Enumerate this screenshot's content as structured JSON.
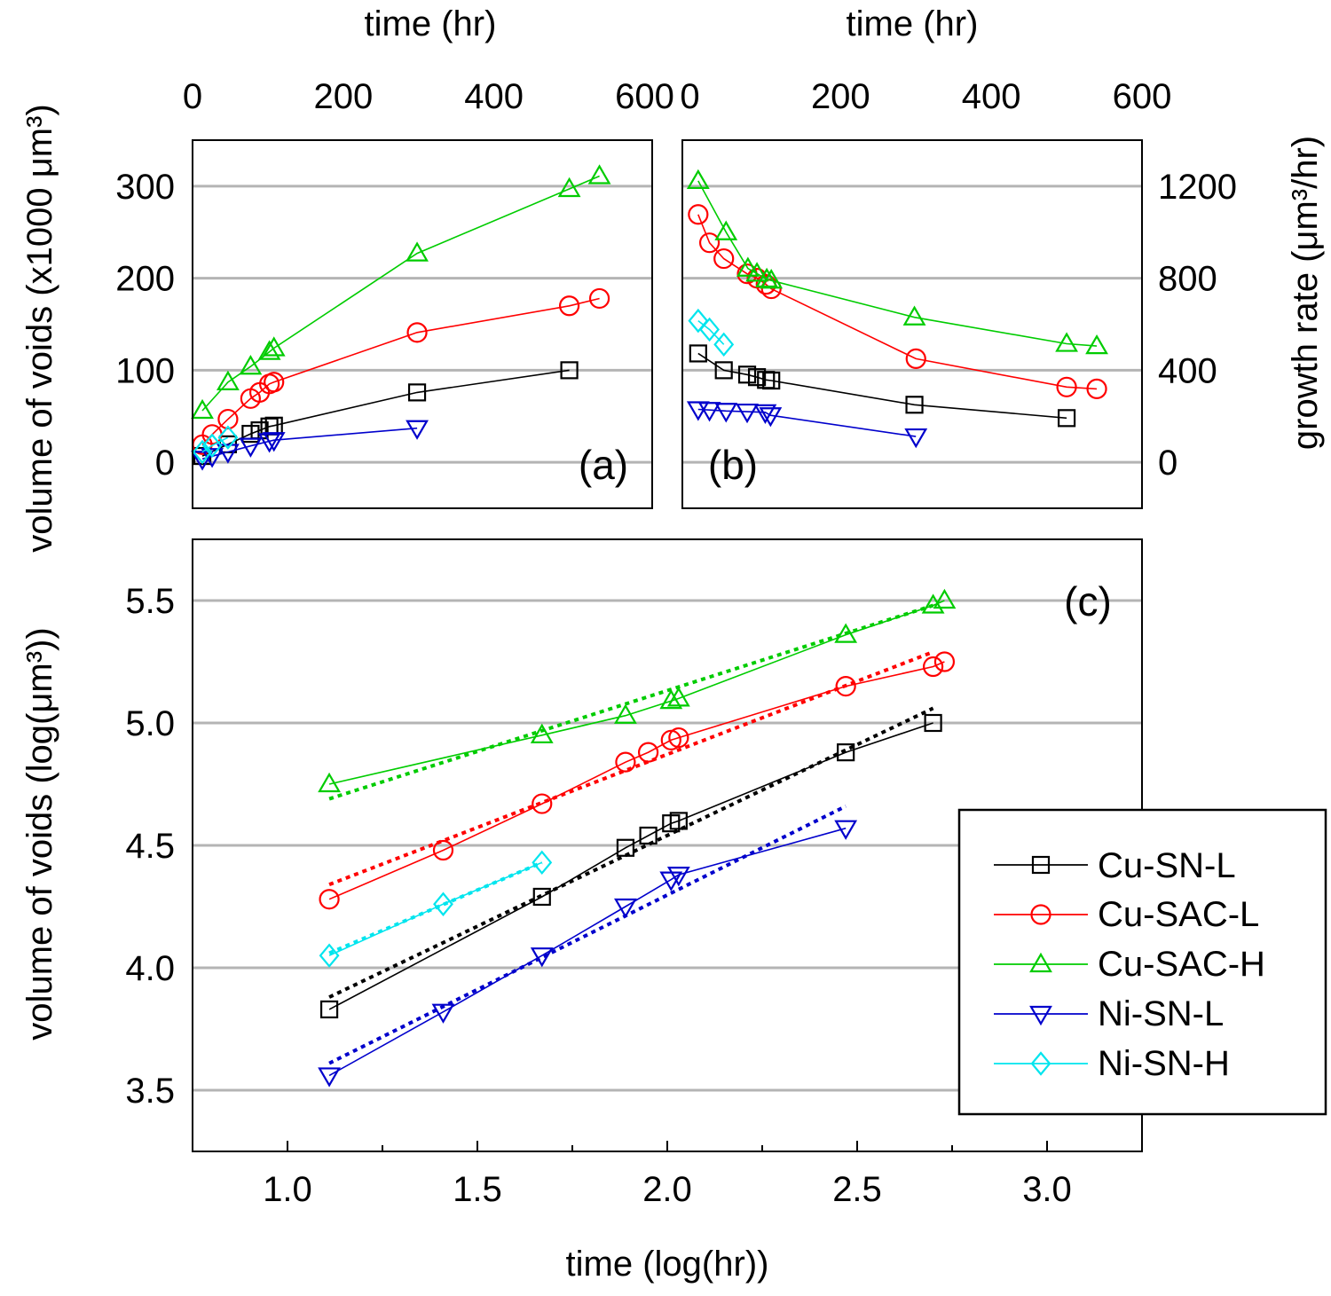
{
  "chart_data": [
    {
      "panel": "a",
      "type": "line",
      "panel_label": "(a)",
      "xlabel": "time (hr)",
      "xaxis_position": "top",
      "ylabel": "volume of voids (x1000 μm³)",
      "xlim": [
        0,
        610
      ],
      "ylim": [
        -50,
        350
      ],
      "xticks": [
        0,
        200,
        400,
        600
      ],
      "yticks": [
        0,
        100,
        200,
        300
      ],
      "grid": true,
      "series": [
        {
          "name": "Cu-SN-L",
          "x": [
            13,
            47,
            77,
            89,
            102,
            108,
            298,
            500
          ],
          "y": [
            6.8,
            19.5,
            30.9,
            34.7,
            38.9,
            39.8,
            75.9,
            100
          ]
        },
        {
          "name": "Cu-SAC-L",
          "x": [
            13,
            26,
            47,
            77,
            89,
            102,
            108,
            298,
            500,
            540
          ],
          "y": [
            19.1,
            30.2,
            46.8,
            69.2,
            75.9,
            85.1,
            87.1,
            141,
            170,
            178
          ]
        },
        {
          "name": "Cu-SAC-H",
          "x": [
            13,
            47,
            77,
            102,
            108,
            298,
            500,
            540
          ],
          "y": [
            56,
            87,
            104,
            120,
            124,
            227,
            297,
            311
          ]
        },
        {
          "name": "Ni-SN-L",
          "x": [
            13,
            26,
            47,
            77,
            102,
            108,
            298
          ],
          "y": [
            3.6,
            6.6,
            11.2,
            17.8,
            22.9,
            24,
            37
          ]
        },
        {
          "name": "Ni-SN-H",
          "x": [
            13,
            26,
            47
          ],
          "y": [
            11.2,
            18.2,
            26.9
          ]
        }
      ]
    },
    {
      "panel": "b",
      "type": "line",
      "panel_label": "(b)",
      "xlabel": "time (hr)",
      "xaxis_position": "top",
      "ylabel": "growth rate (μm³/hr)",
      "yaxis_position": "right",
      "xlim": [
        -10,
        600
      ],
      "ylim": [
        -200,
        1400
      ],
      "xticks": [
        0,
        200,
        400,
        600
      ],
      "yticks": [
        0,
        400,
        800,
        1200
      ],
      "grid": true,
      "series": [
        {
          "name": "Cu-SN-L",
          "x": [
            11,
            45,
            76,
            89,
            101,
            108,
            298,
            500
          ],
          "y": [
            473,
            400,
            381,
            370,
            358,
            355,
            250,
            192
          ]
        },
        {
          "name": "Cu-SAC-L",
          "x": [
            11,
            26,
            45,
            76,
            89,
            101,
            108,
            300,
            500,
            540
          ],
          "y": [
            1077,
            954,
            885,
            819,
            800,
            773,
            754,
            450,
            327,
            319
          ]
        },
        {
          "name": "Cu-SAC-H",
          "x": [
            11,
            48,
            77,
            89,
            102,
            108,
            298,
            500,
            540
          ],
          "y": [
            1223,
            1000,
            842,
            820,
            795,
            790,
            630,
            515,
            505
          ]
        },
        {
          "name": "Ni-SN-L",
          "x": [
            11,
            26,
            48,
            76,
            100,
            107,
            300
          ],
          "y": [
            230,
            227,
            223,
            220,
            217,
            204,
            112
          ]
        },
        {
          "name": "Ni-SN-H",
          "x": [
            11,
            26,
            45
          ],
          "y": [
            615,
            577,
            512
          ]
        }
      ]
    },
    {
      "panel": "c",
      "type": "line",
      "panel_label": "(c)",
      "xlabel": "time (log(hr))",
      "ylabel": "volume of voids (log(μm³))",
      "xlim": [
        0.75,
        3.25
      ],
      "ylim": [
        3.25,
        5.75
      ],
      "xticks": [
        "1.0",
        "1.5",
        "2.0",
        "2.5",
        "3.0"
      ],
      "yticks": [
        "3.5",
        "4.0",
        "4.5",
        "5.0",
        "5.5"
      ],
      "grid": true,
      "legend_placement": "bottom-right",
      "series": [
        {
          "name": "Cu-SN-L",
          "x": [
            1.11,
            1.67,
            1.89,
            1.95,
            2.01,
            2.03,
            2.47,
            2.7
          ],
          "y": [
            3.83,
            4.29,
            4.49,
            4.54,
            4.59,
            4.6,
            4.88,
            5.0
          ],
          "fit": [
            [
              1.11,
              3.88
            ],
            [
              2.7,
              5.06
            ]
          ]
        },
        {
          "name": "Cu-SAC-L",
          "x": [
            1.11,
            1.41,
            1.67,
            1.89,
            1.95,
            2.01,
            2.03,
            2.47,
            2.7,
            2.73
          ],
          "y": [
            4.28,
            4.48,
            4.67,
            4.84,
            4.88,
            4.93,
            4.94,
            5.15,
            5.23,
            5.25
          ],
          "fit": [
            [
              1.11,
              4.34
            ],
            [
              2.7,
              5.29
            ]
          ]
        },
        {
          "name": "Cu-SAC-H",
          "x": [
            1.11,
            1.67,
            1.89,
            2.01,
            2.03,
            2.47,
            2.7,
            2.73
          ],
          "y": [
            4.75,
            4.95,
            5.03,
            5.09,
            5.1,
            5.36,
            5.48,
            5.5
          ],
          "fit": [
            [
              1.11,
              4.69
            ],
            [
              2.7,
              5.48
            ]
          ]
        },
        {
          "name": "Ni-SN-L",
          "x": [
            1.11,
            1.41,
            1.67,
            1.89,
            2.01,
            2.03,
            2.47
          ],
          "y": [
            3.56,
            3.82,
            4.05,
            4.25,
            4.36,
            4.38,
            4.57
          ],
          "fit": [
            [
              1.11,
              3.61
            ],
            [
              2.47,
              4.66
            ]
          ]
        },
        {
          "name": "Ni-SN-H",
          "x": [
            1.11,
            1.41,
            1.67
          ],
          "y": [
            4.05,
            4.26,
            4.43
          ],
          "fit": [
            [
              1.11,
              4.06
            ],
            [
              1.67,
              4.43
            ]
          ]
        }
      ]
    }
  ],
  "legend": [
    {
      "name": "Cu-SN-L",
      "marker": "square",
      "color": "#000000"
    },
    {
      "name": "Cu-SAC-L",
      "marker": "circle",
      "color": "#ff0000"
    },
    {
      "name": "Cu-SAC-H",
      "marker": "triangle-up",
      "color": "#00cc00"
    },
    {
      "name": "Ni-SN-L",
      "marker": "triangle-down",
      "color": "#0000cc"
    },
    {
      "name": "Ni-SN-H",
      "marker": "diamond",
      "color": "#00e5ee"
    }
  ],
  "colors": {
    "grid": "#b4b4b4"
  }
}
